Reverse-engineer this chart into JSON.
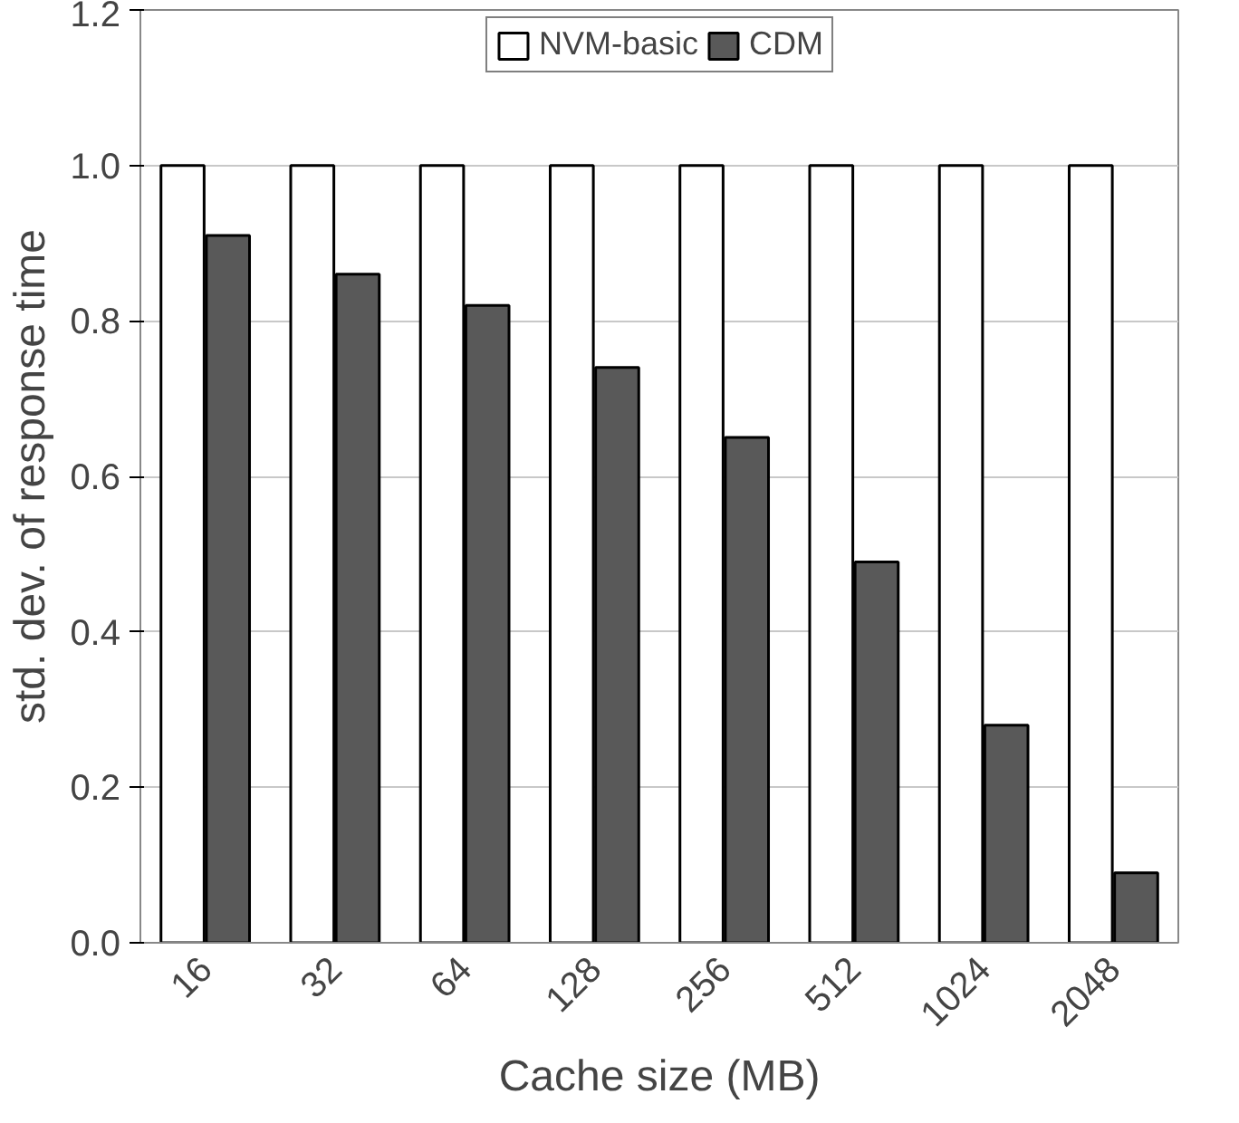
{
  "chart_data": {
    "type": "bar",
    "xlabel": "Cache size (MB)",
    "ylabel": "std. dev. of response time",
    "categories": [
      "16",
      "32",
      "64",
      "128",
      "256",
      "512",
      "1024",
      "2048"
    ],
    "series": [
      {
        "name": "NVM-basic",
        "color": "#ffffff",
        "values": [
          1.0,
          1.0,
          1.0,
          1.0,
          1.0,
          1.0,
          1.0,
          1.0
        ]
      },
      {
        "name": "CDM",
        "color": "#595959",
        "values": [
          0.91,
          0.86,
          0.82,
          0.74,
          0.65,
          0.49,
          0.28,
          0.09
        ]
      }
    ],
    "ylim": [
      0,
      1.2
    ],
    "yticks": [
      {
        "value": 0,
        "label": "0.0"
      },
      {
        "value": 0.2,
        "label": "0.2"
      },
      {
        "value": 0.4,
        "label": "0.4"
      },
      {
        "value": 0.6,
        "label": "0.6"
      },
      {
        "value": 0.8,
        "label": "0.8"
      },
      {
        "value": 1.0,
        "label": "1.0"
      },
      {
        "value": 1.2,
        "label": "1.2"
      }
    ],
    "grid": "y",
    "legend": "top"
  }
}
